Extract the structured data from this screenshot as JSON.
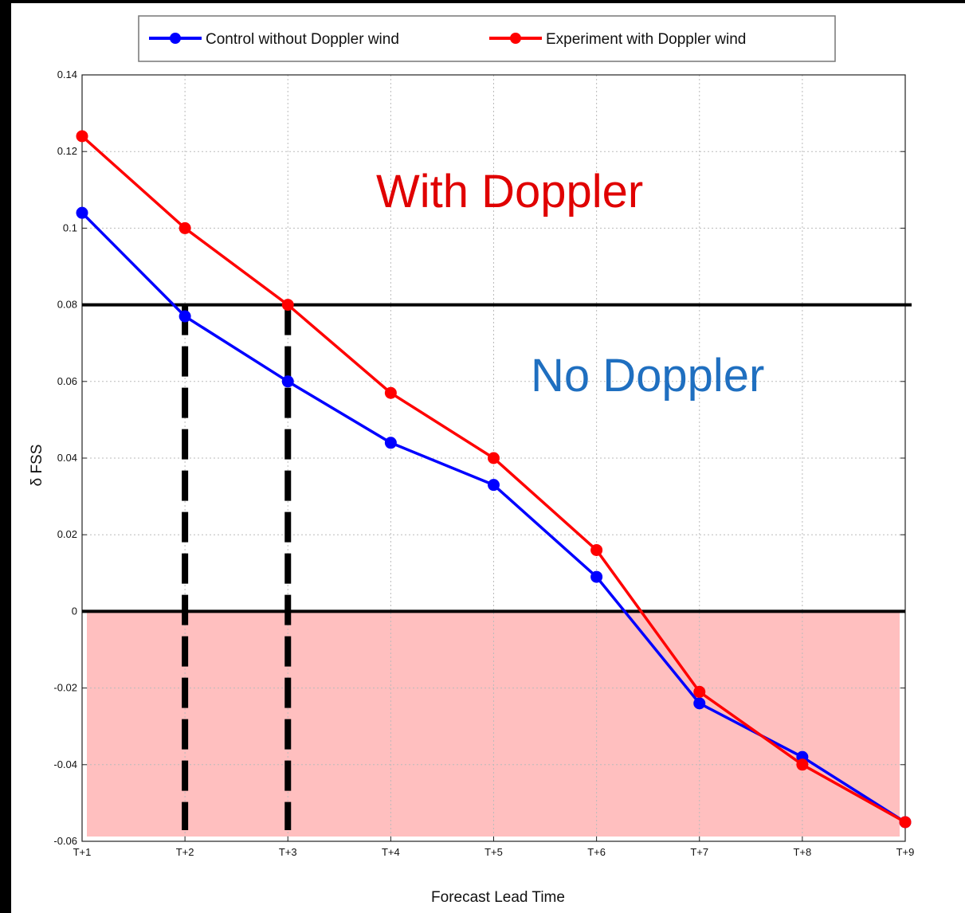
{
  "chart_data": {
    "type": "line",
    "xlabel": "Forecast Lead Time",
    "ylabel": "δ FSS",
    "categories": [
      "T+1",
      "T+2",
      "T+3",
      "T+4",
      "T+5",
      "T+6",
      "T+7",
      "T+8",
      "T+9"
    ],
    "yticks": [
      "0.14",
      "0.12",
      "0.1",
      "0.08",
      "0.06",
      "0.04",
      "0.02",
      "0",
      "-0.02",
      "-0.04",
      "-0.06"
    ],
    "ylim": [
      -0.06,
      0.14
    ],
    "grid": true,
    "legend_position": "top",
    "series": [
      {
        "name": "Control without Doppler wind",
        "color": "#0000ff",
        "values": [
          0.104,
          0.077,
          0.06,
          0.044,
          0.033,
          0.009,
          -0.024,
          -0.038,
          -0.055
        ]
      },
      {
        "name": "Experiment with Doppler wind",
        "color": "#ff0000",
        "values": [
          0.124,
          0.1,
          0.08,
          0.057,
          0.04,
          0.016,
          -0.021,
          -0.04,
          -0.055
        ]
      }
    ],
    "reference_lines": [
      {
        "y": 0.08,
        "color": "#000000"
      },
      {
        "y": 0,
        "color": "#000000"
      }
    ],
    "dashed_verticals": [
      {
        "category": "T+2",
        "from": -0.06,
        "to": 0.08
      },
      {
        "category": "T+3",
        "from": -0.06,
        "to": 0.08
      }
    ],
    "shaded_region": {
      "from": -0.06,
      "to": 0,
      "color": "#ffbfbf"
    },
    "annotations": [
      {
        "text": "With Doppler",
        "color": "#e00000"
      },
      {
        "text": "No Doppler",
        "color": "#1f6fc0"
      }
    ]
  }
}
